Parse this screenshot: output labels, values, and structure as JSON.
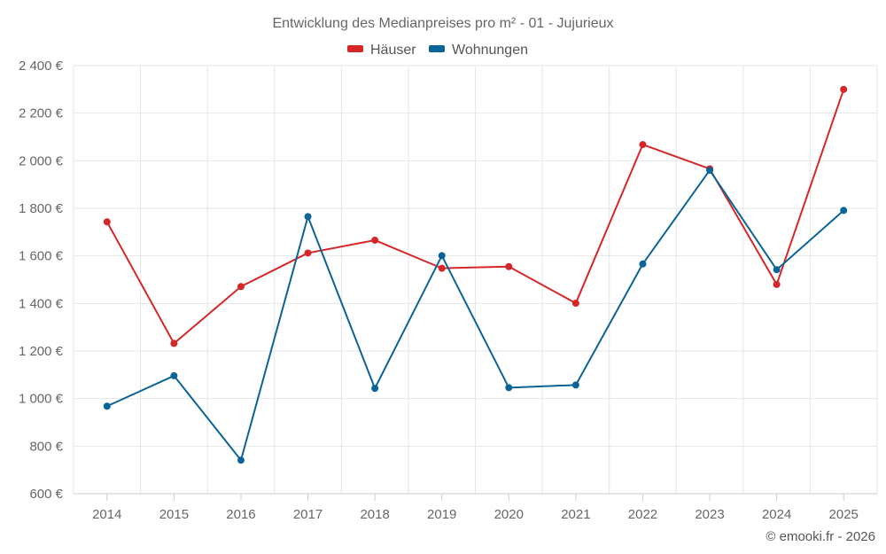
{
  "chart_data": {
    "type": "line",
    "title": "Entwicklung des Medianpreises pro m² - 01 - Jujurieux",
    "categories": [
      "2014",
      "2015",
      "2016",
      "2017",
      "2018",
      "2019",
      "2020",
      "2021",
      "2022",
      "2023",
      "2024",
      "2025"
    ],
    "series": [
      {
        "name": "Häuser",
        "color": "#d62728",
        "values": [
          1743,
          1232,
          1471,
          1612,
          1666,
          1548,
          1555,
          1401,
          2068,
          1966,
          1480,
          2300
        ]
      },
      {
        "name": "Wohnungen",
        "color": "#0b6496",
        "values": [
          968,
          1096,
          741,
          1765,
          1043,
          1601,
          1046,
          1057,
          1566,
          1960,
          1542,
          1791
        ]
      }
    ],
    "ylim": [
      600,
      2400
    ],
    "yticks": [
      600,
      800,
      1000,
      1200,
      1400,
      1600,
      1800,
      2000,
      2200,
      2400
    ],
    "ytick_labels": [
      "600 €",
      "800 €",
      "1 000 €",
      "1 200 €",
      "1 400 €",
      "1 600 €",
      "1 800 €",
      "2 000 €",
      "2 200 €",
      "2 400 €"
    ],
    "legend_position": "top-center",
    "grid": true,
    "credit": "© emooki.fr - 2026"
  }
}
